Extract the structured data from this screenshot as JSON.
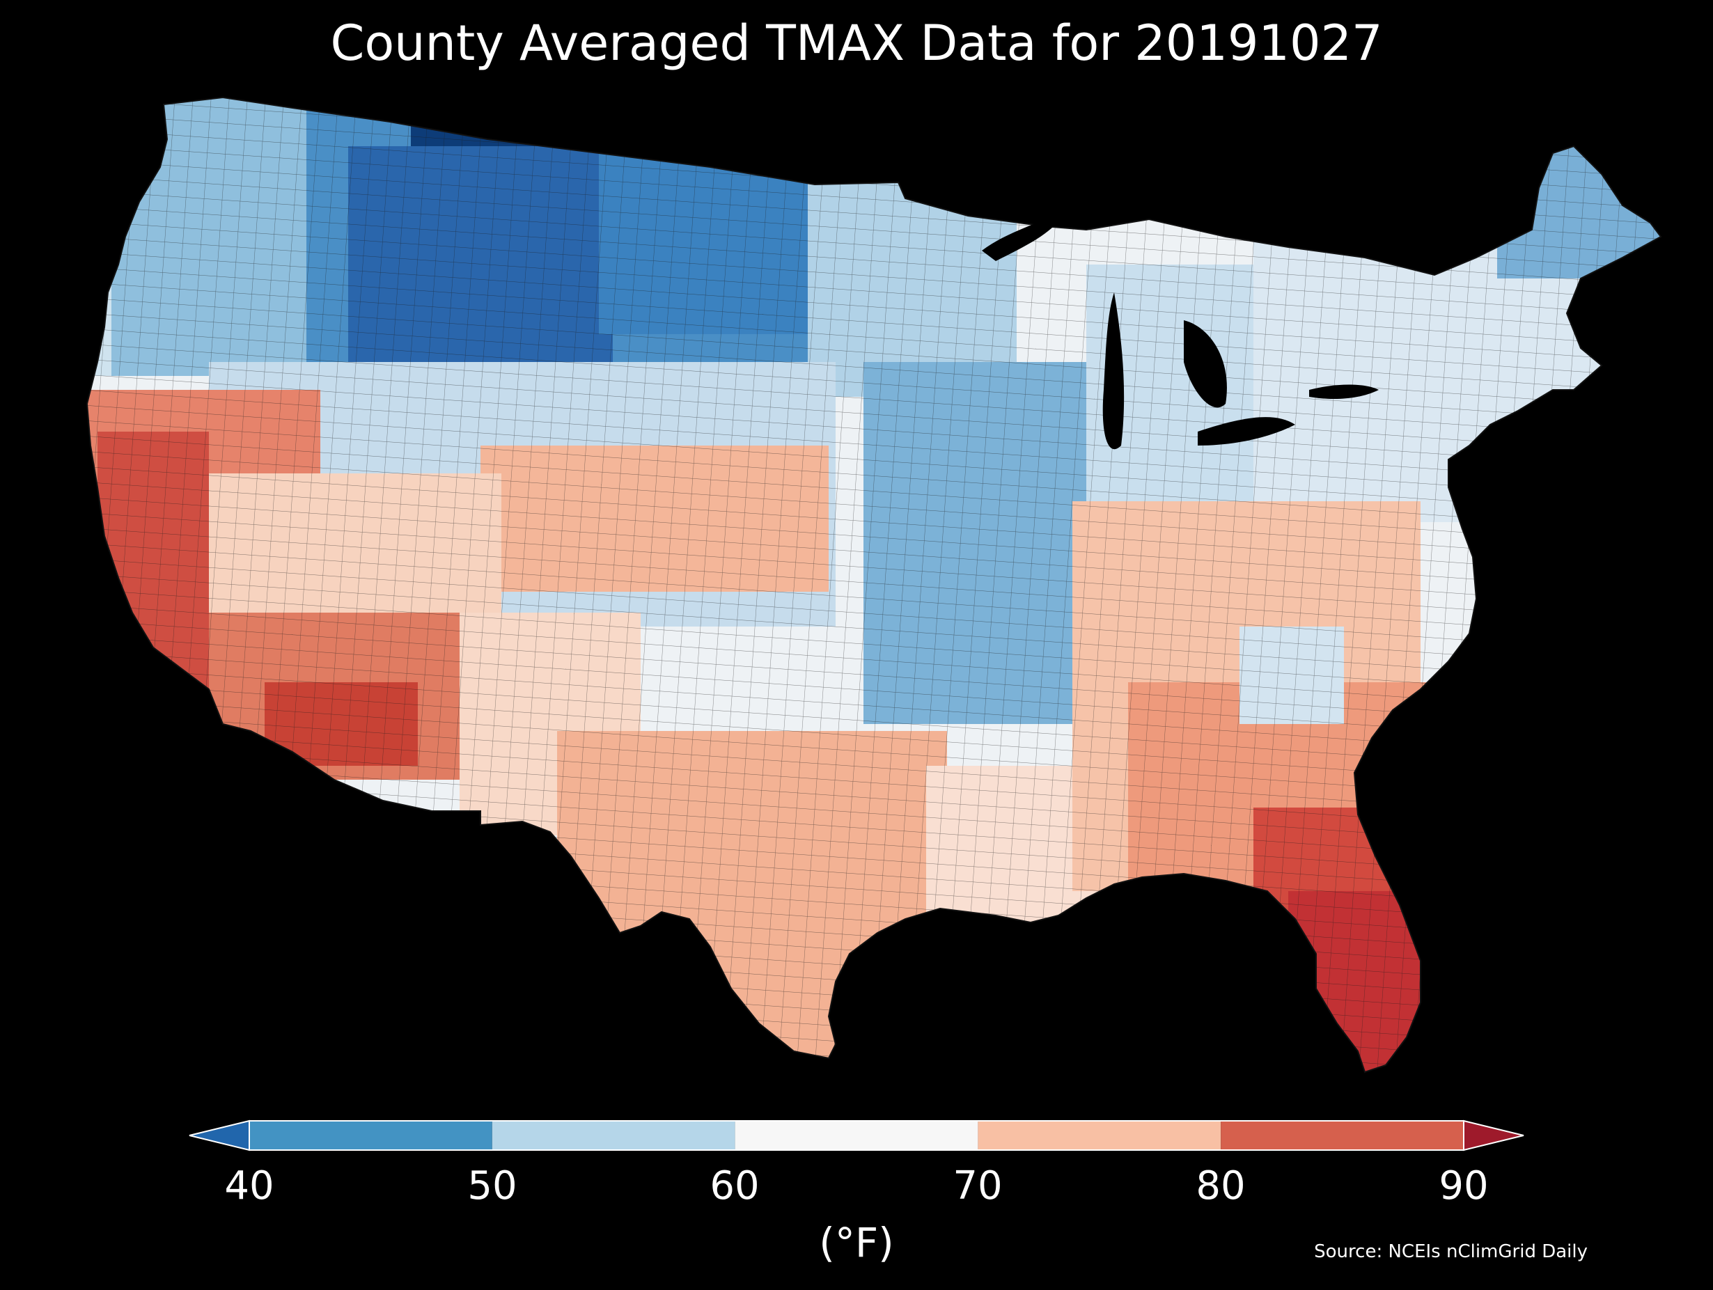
{
  "title": "County Averaged TMAX Data for 20191027",
  "colorbar": {
    "unit_label": "(°F)",
    "ticks": [
      "40",
      "50",
      "60",
      "70",
      "80",
      "90"
    ],
    "bins": [
      {
        "from": null,
        "to": 40,
        "color": "#2166ac"
      },
      {
        "from": 40,
        "to": 50,
        "color": "#4393c3"
      },
      {
        "from": 50,
        "to": 60,
        "color": "#b5d6e9"
      },
      {
        "from": 60,
        "to": 70,
        "color": "#f7f7f7"
      },
      {
        "from": 70,
        "to": 80,
        "color": "#f8c0a4"
      },
      {
        "from": 80,
        "to": 90,
        "color": "#d6604d"
      },
      {
        "from": 90,
        "to": null,
        "color": "#9e1a2b"
      }
    ]
  },
  "source": "Source: NCEIs nClimGrid Daily",
  "map_regions": [
    {
      "region": "Northern Rockies / Montana",
      "color": "#0b3a73"
    },
    {
      "region": "Northern Plains",
      "color": "#3a7fbd"
    },
    {
      "region": "Pacific Northwest",
      "color": "#7db3d8"
    },
    {
      "region": "Upper Midwest",
      "color": "#b9d7ea"
    },
    {
      "region": "Great Basin",
      "color": "#d3e5f1"
    },
    {
      "region": "Central Plains / Midwest",
      "color": "#eef3f7"
    },
    {
      "region": "Northeast",
      "color": "#dfe9f1"
    },
    {
      "region": "Southwest",
      "color": "#f6d0b8"
    },
    {
      "region": "Southern California / Arizona",
      "color": "#de6e57"
    },
    {
      "region": "Texas",
      "color": "#f2b091"
    },
    {
      "region": "Southeast",
      "color": "#ec9a7c"
    },
    {
      "region": "Florida",
      "color": "#c93a38"
    }
  ]
}
